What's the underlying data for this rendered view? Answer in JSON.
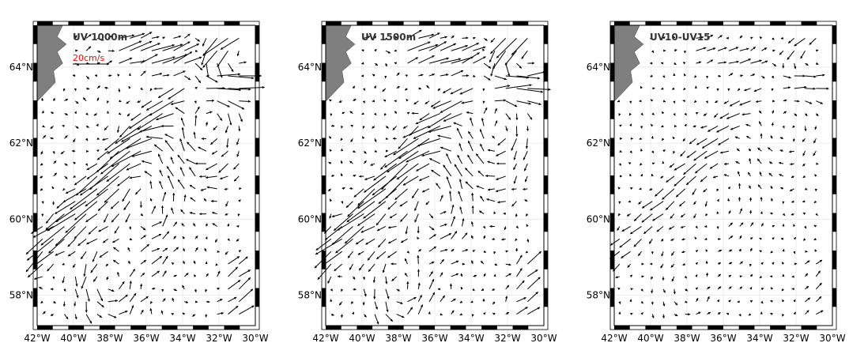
{
  "chart_data": [
    {
      "type": "quiver",
      "title": "UV 1000m",
      "scale_label": "20cm/s",
      "scale_value_cm_s": 20,
      "lon_range": [
        -42,
        -30
      ],
      "lat_range": [
        57.2,
        65.1
      ],
      "x_ticks": [
        "42°W",
        "40°W",
        "38°W",
        "36°W",
        "34°W",
        "32°W",
        "30°W"
      ],
      "y_ticks": [
        "58°N",
        "60°N",
        "62°N",
        "64°N"
      ],
      "grid": true,
      "flow_strength": 1.0
    },
    {
      "type": "quiver",
      "title": "UV 1500m",
      "lon_range": [
        -42,
        -30
      ],
      "lat_range": [
        57.2,
        65.1
      ],
      "x_ticks": [
        "42°W",
        "40°W",
        "38°W",
        "36°W",
        "34°W",
        "32°W",
        "30°W"
      ],
      "y_ticks": [
        "58°N",
        "60°N",
        "62°N",
        "64°N"
      ],
      "grid": true,
      "flow_strength": 0.95
    },
    {
      "type": "quiver",
      "title": "UV10-UV15",
      "lon_range": [
        -42,
        -30
      ],
      "lat_range": [
        57.2,
        65.1
      ],
      "x_ticks": [
        "42°W",
        "40°W",
        "38°W",
        "36°W",
        "34°W",
        "32°W",
        "30°W"
      ],
      "y_ticks": [
        "58°N",
        "60°N",
        "62°N",
        "64°N"
      ],
      "grid": true,
      "flow_strength": 0.45
    }
  ],
  "colors": {
    "arrow": "#000000",
    "land": "#7f7f7f",
    "scale_label": "#ff0000",
    "grid": "#e6e6e6"
  }
}
